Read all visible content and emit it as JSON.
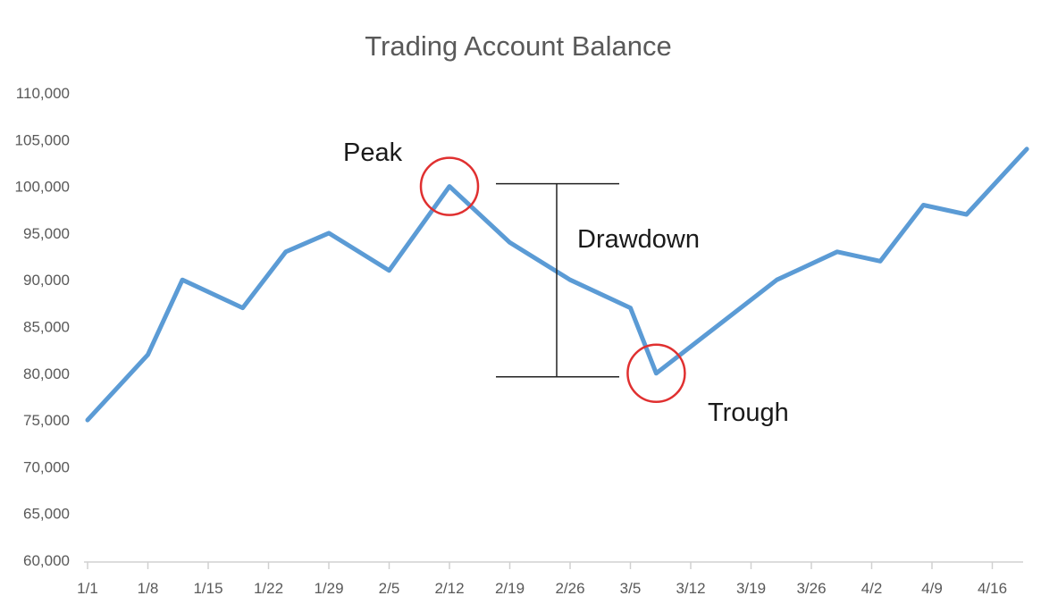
{
  "chart_data": {
    "type": "line",
    "title": "Trading Account Balance",
    "xlabel": "",
    "ylabel": "",
    "ylim": [
      60000,
      110000
    ],
    "yticks": [
      "60,000",
      "65,000",
      "70,000",
      "75,000",
      "80,000",
      "85,000",
      "90,000",
      "95,000",
      "100,000",
      "105,000",
      "110,000"
    ],
    "xticks": [
      "1/1",
      "1/8",
      "1/15",
      "1/22",
      "1/29",
      "2/5",
      "2/12",
      "2/19",
      "2/26",
      "3/5",
      "3/12",
      "3/19",
      "3/26",
      "4/2",
      "4/9",
      "4/16"
    ],
    "x": [
      "1/1",
      "1/8",
      "1/12",
      "1/19",
      "1/24",
      "1/29",
      "2/5",
      "2/12",
      "2/19",
      "2/26",
      "3/5",
      "3/8",
      "3/15",
      "3/22",
      "3/29",
      "4/3",
      "4/8",
      "4/13",
      "4/20"
    ],
    "values": [
      75000,
      82000,
      90000,
      87000,
      93000,
      95000,
      91000,
      100000,
      94000,
      90000,
      87000,
      80000,
      85000,
      90000,
      93000,
      92000,
      98000,
      97000,
      104000
    ],
    "grid": false,
    "legend": "none",
    "line_color": "#5b9bd5",
    "circle_color": "#e03030",
    "annotations": {
      "peak": {
        "label": "Peak",
        "x": "2/12",
        "y": 100000
      },
      "trough": {
        "label": "Trough",
        "x": "3/8",
        "y": 80000
      },
      "drawdown": {
        "label": "Drawdown",
        "from": 100000,
        "to": 80000
      }
    }
  }
}
